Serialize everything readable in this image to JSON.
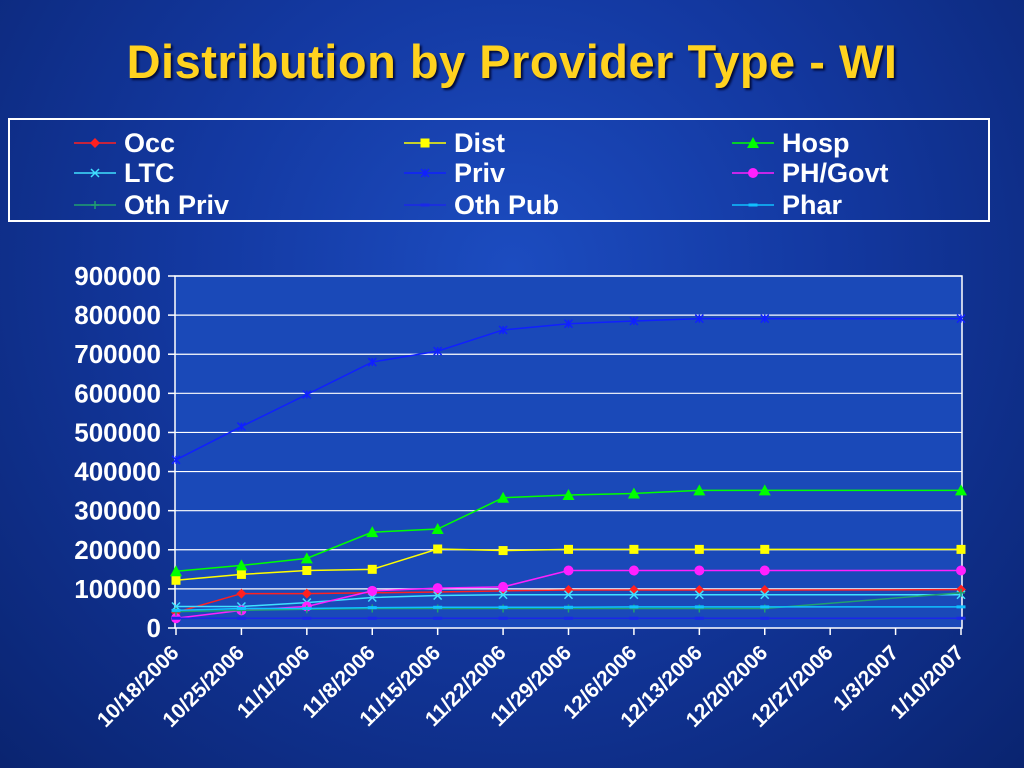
{
  "title": "Distribution by Provider Type - WI",
  "colors": {
    "background": "#1338a0",
    "title": "#ffd21f",
    "plot_area": "#1a49b8",
    "grid": "#ffffff"
  },
  "chart_data": {
    "type": "line",
    "title": "Distribution by Provider Type - WI",
    "xlabel": "",
    "ylabel": "",
    "ylim": [
      0,
      900000
    ],
    "yticks": [
      0,
      100000,
      200000,
      300000,
      400000,
      500000,
      600000,
      700000,
      800000,
      900000
    ],
    "grid": true,
    "legend_position": "top",
    "categories": [
      "10/18/2006",
      "10/25/2006",
      "11/1/2006",
      "11/8/2006",
      "11/15/2006",
      "11/22/2006",
      "11/29/2006",
      "12/6/2006",
      "12/13/2006",
      "12/20/2006",
      "12/27/2006",
      "1/3/2007",
      "1/10/2007"
    ],
    "series": [
      {
        "name": "Occ",
        "color": "#ff2020",
        "marker": "diamond",
        "values": [
          40000,
          88000,
          88000,
          90000,
          92000,
          95000,
          97000,
          97000,
          97000,
          97000,
          null,
          null,
          98000
        ]
      },
      {
        "name": "Dist",
        "color": "#ffff00",
        "marker": "square",
        "values": [
          122000,
          137000,
          147000,
          150000,
          202000,
          198000,
          201000,
          201000,
          201000,
          201000,
          null,
          null,
          201000
        ]
      },
      {
        "name": "Hosp",
        "color": "#00ff00",
        "marker": "triangle",
        "values": [
          145000,
          160000,
          178000,
          245000,
          253000,
          333000,
          340000,
          344000,
          352000,
          352000,
          null,
          null,
          352000
        ]
      },
      {
        "name": "LTC",
        "color": "#40e0ff",
        "marker": "x",
        "values": [
          55000,
          55000,
          65000,
          78000,
          83000,
          85000,
          85000,
          85000,
          85000,
          85000,
          null,
          null,
          85000
        ]
      },
      {
        "name": "Priv",
        "color": "#1020ff",
        "marker": "star",
        "values": [
          430000,
          515000,
          597000,
          680000,
          708000,
          762000,
          778000,
          785000,
          791000,
          791000,
          null,
          null,
          791000
        ]
      },
      {
        "name": "PH/Govt",
        "color": "#ff20ff",
        "marker": "circle",
        "values": [
          25000,
          45000,
          55000,
          95000,
          102000,
          105000,
          147000,
          147000,
          147000,
          147000,
          null,
          null,
          147000
        ]
      },
      {
        "name": "Oth Priv",
        "color": "#20a070",
        "marker": "plus",
        "values": [
          42000,
          45000,
          48000,
          50000,
          50000,
          50000,
          50000,
          50000,
          50000,
          50000,
          null,
          null,
          90000
        ]
      },
      {
        "name": "Oth Pub",
        "color": "#1a28e8",
        "marker": "dash",
        "values": [
          25000,
          25000,
          25000,
          25000,
          25000,
          25000,
          25000,
          25000,
          25000,
          25000,
          null,
          null,
          25000
        ]
      },
      {
        "name": "Phar",
        "color": "#10c0ff",
        "marker": "dash",
        "values": [
          45000,
          50000,
          50000,
          52000,
          53000,
          53000,
          53000,
          54000,
          54000,
          54000,
          null,
          null,
          54000
        ]
      }
    ]
  }
}
